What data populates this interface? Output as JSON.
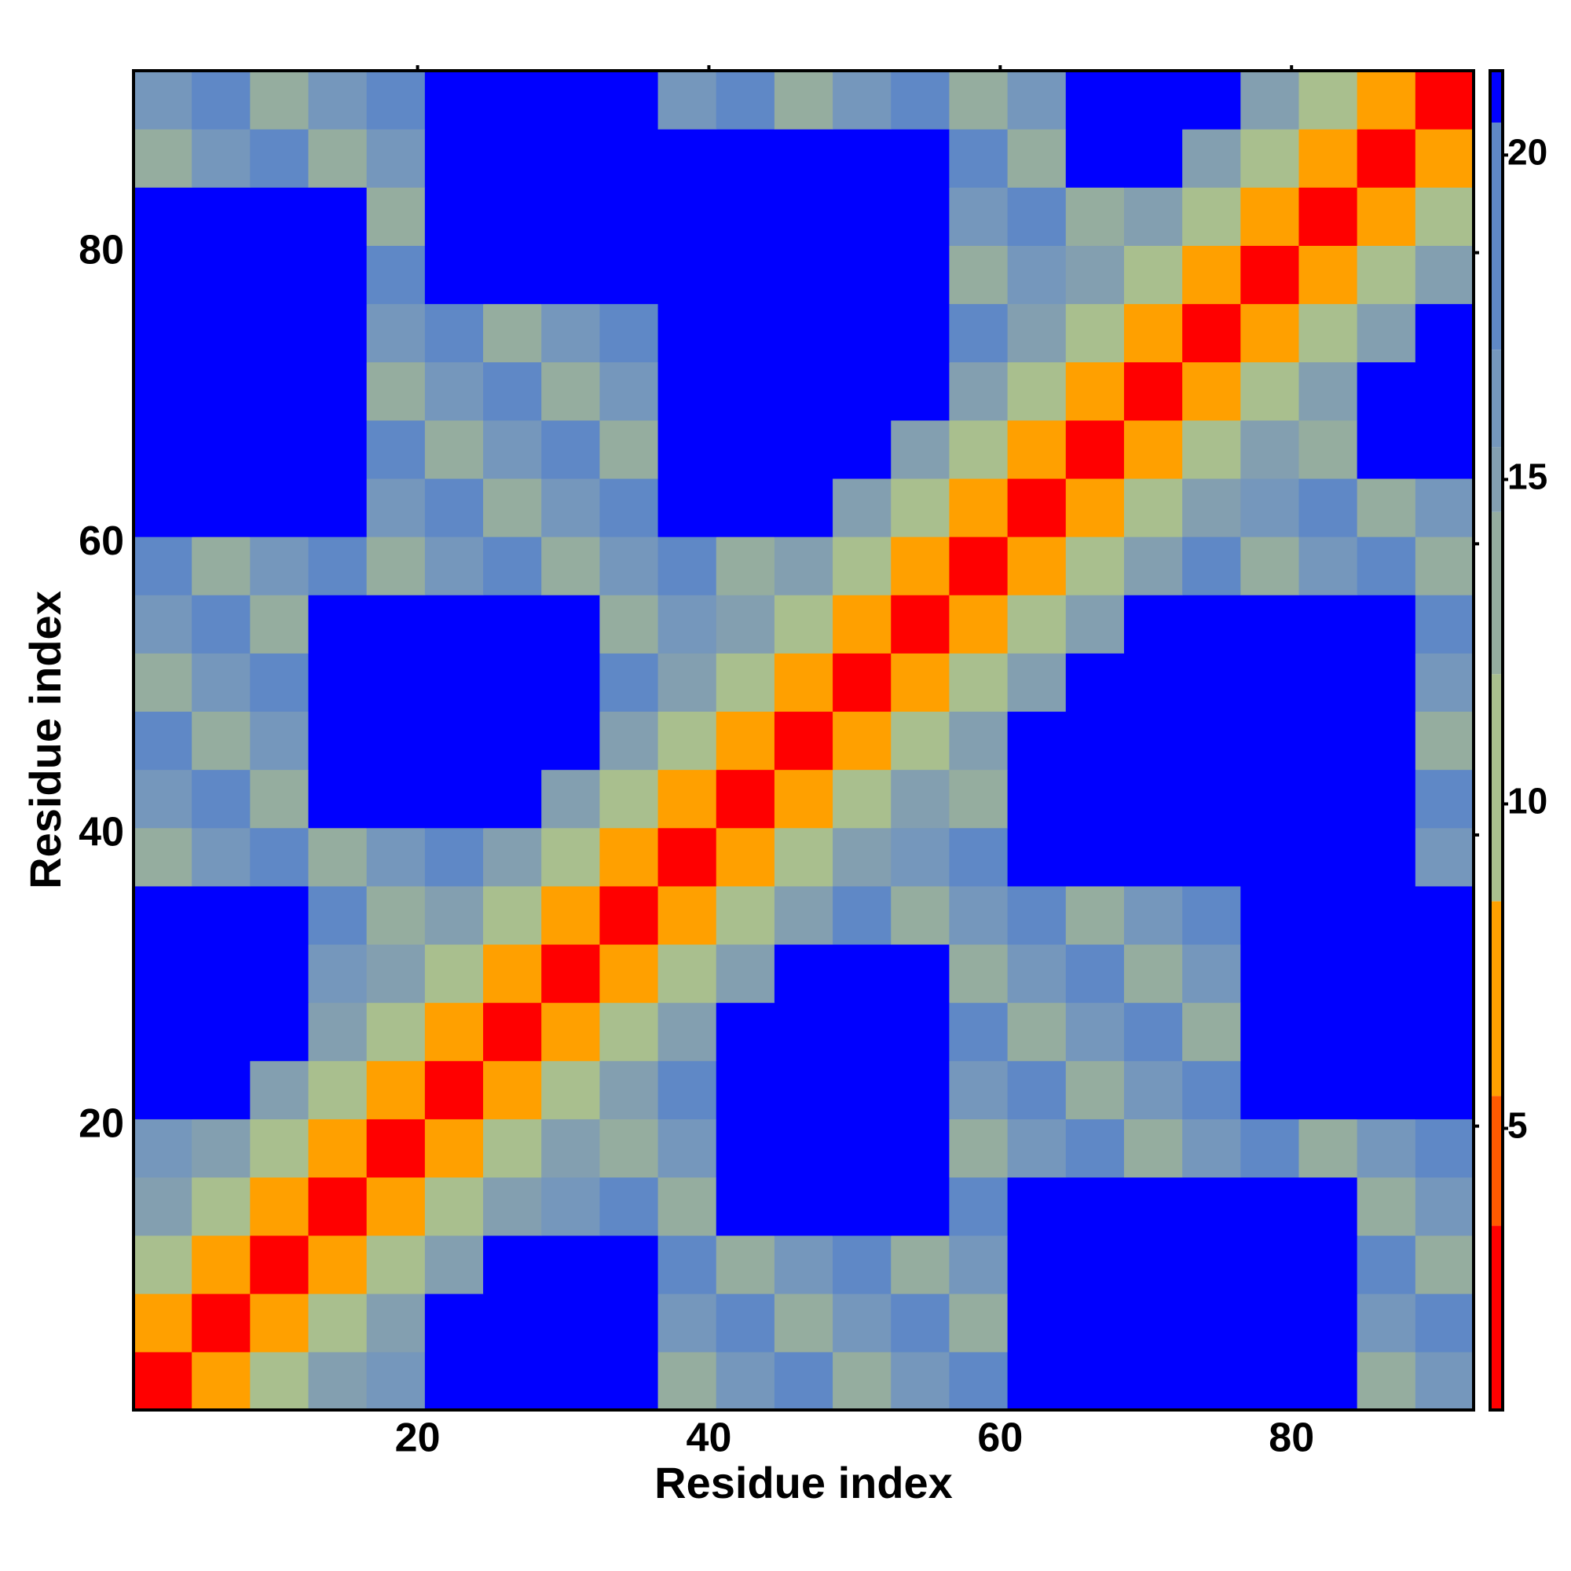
{
  "chart_data": {
    "type": "heatmap",
    "x_label": "Residue index",
    "y_label": "Residue index",
    "x": [
      2.5,
      6.5,
      10.5,
      14.5,
      18.5,
      22.5,
      26.5,
      30.5,
      34.5,
      38.5,
      42.5,
      46.5,
      50.5,
      54.5,
      58.5,
      62.5,
      66.5,
      70.5,
      74.5,
      78.5,
      82.5,
      86.5,
      90.5
    ],
    "y": [
      2.5,
      6.5,
      10.5,
      14.5,
      18.5,
      22.5,
      26.5,
      30.5,
      34.5,
      38.5,
      42.5,
      46.5,
      50.5,
      54.5,
      58.5,
      62.5,
      66.5,
      70.5,
      74.5,
      78.5,
      82.5,
      86.5,
      90.5
    ],
    "xlim": [
      0.5,
      92.5
    ],
    "ylim": [
      0.5,
      92.5
    ],
    "xticks": [
      20,
      40,
      60,
      80
    ],
    "yticks": [
      20,
      40,
      60,
      80
    ],
    "z": [
      [
        2,
        7,
        11,
        15,
        16,
        21,
        21,
        21,
        21,
        14,
        16,
        18,
        14,
        16,
        18,
        21,
        21,
        21,
        21,
        21,
        21,
        14,
        16
      ],
      [
        7,
        2,
        7,
        11,
        15,
        21,
        21,
        21,
        21,
        16,
        18,
        14,
        16,
        18,
        14,
        21,
        21,
        21,
        21,
        21,
        21,
        16,
        18
      ],
      [
        11,
        7,
        2,
        7,
        11,
        15,
        21,
        21,
        21,
        18,
        14,
        16,
        18,
        14,
        16,
        21,
        21,
        21,
        21,
        21,
        21,
        18,
        14
      ],
      [
        15,
        11,
        7,
        2,
        7,
        11,
        15,
        16,
        18,
        14,
        21,
        21,
        21,
        21,
        18,
        21,
        21,
        21,
        21,
        21,
        21,
        14,
        16
      ],
      [
        16,
        15,
        11,
        7,
        2,
        7,
        11,
        15,
        14,
        16,
        21,
        21,
        21,
        21,
        14,
        16,
        18,
        14,
        16,
        18,
        14,
        16,
        18
      ],
      [
        21,
        21,
        15,
        11,
        7,
        2,
        7,
        11,
        15,
        18,
        21,
        21,
        21,
        21,
        16,
        18,
        14,
        16,
        18,
        21,
        21,
        21,
        21
      ],
      [
        21,
        21,
        21,
        15,
        11,
        7,
        2,
        7,
        11,
        15,
        21,
        21,
        21,
        21,
        18,
        14,
        16,
        18,
        14,
        21,
        21,
        21,
        21
      ],
      [
        21,
        21,
        21,
        16,
        15,
        11,
        7,
        2,
        7,
        11,
        15,
        21,
        21,
        21,
        14,
        16,
        18,
        14,
        16,
        21,
        21,
        21,
        21
      ],
      [
        21,
        21,
        21,
        18,
        14,
        15,
        11,
        7,
        2,
        7,
        11,
        15,
        18,
        14,
        16,
        18,
        14,
        16,
        18,
        21,
        21,
        21,
        21
      ],
      [
        14,
        16,
        18,
        14,
        16,
        18,
        15,
        11,
        7,
        2,
        7,
        11,
        15,
        16,
        18,
        21,
        21,
        21,
        21,
        21,
        21,
        21,
        16
      ],
      [
        16,
        18,
        14,
        21,
        21,
        21,
        21,
        15,
        11,
        7,
        2,
        7,
        11,
        15,
        14,
        21,
        21,
        21,
        21,
        21,
        21,
        21,
        18
      ],
      [
        18,
        14,
        16,
        21,
        21,
        21,
        21,
        21,
        15,
        11,
        7,
        2,
        7,
        11,
        15,
        21,
        21,
        21,
        21,
        21,
        21,
        21,
        14
      ],
      [
        14,
        16,
        18,
        21,
        21,
        21,
        21,
        21,
        18,
        15,
        11,
        7,
        2,
        7,
        11,
        15,
        21,
        21,
        21,
        21,
        21,
        21,
        16
      ],
      [
        16,
        18,
        14,
        21,
        21,
        21,
        21,
        21,
        14,
        16,
        15,
        11,
        7,
        2,
        7,
        11,
        15,
        21,
        21,
        21,
        21,
        21,
        18
      ],
      [
        18,
        14,
        16,
        18,
        14,
        16,
        18,
        14,
        16,
        18,
        14,
        15,
        11,
        7,
        2,
        7,
        11,
        15,
        18,
        14,
        16,
        18,
        14
      ],
      [
        21,
        21,
        21,
        21,
        16,
        18,
        14,
        16,
        18,
        21,
        21,
        21,
        15,
        11,
        7,
        2,
        7,
        11,
        15,
        16,
        18,
        14,
        16
      ],
      [
        21,
        21,
        21,
        21,
        18,
        14,
        16,
        18,
        14,
        21,
        21,
        21,
        21,
        15,
        11,
        7,
        2,
        7,
        11,
        15,
        14,
        21,
        21
      ],
      [
        21,
        21,
        21,
        21,
        14,
        16,
        18,
        14,
        16,
        21,
        21,
        21,
        21,
        21,
        15,
        11,
        7,
        2,
        7,
        11,
        15,
        21,
        21
      ],
      [
        21,
        21,
        21,
        21,
        16,
        18,
        14,
        16,
        18,
        21,
        21,
        21,
        21,
        21,
        18,
        15,
        11,
        7,
        2,
        7,
        11,
        15,
        21
      ],
      [
        21,
        21,
        21,
        21,
        18,
        21,
        21,
        21,
        21,
        21,
        21,
        21,
        21,
        21,
        14,
        16,
        15,
        11,
        7,
        2,
        7,
        11,
        15
      ],
      [
        21,
        21,
        21,
        21,
        14,
        21,
        21,
        21,
        21,
        21,
        21,
        21,
        21,
        21,
        16,
        18,
        14,
        15,
        11,
        7,
        2,
        7,
        11
      ],
      [
        14,
        16,
        18,
        14,
        16,
        21,
        21,
        21,
        21,
        21,
        21,
        21,
        21,
        21,
        18,
        14,
        21,
        21,
        15,
        11,
        7,
        2,
        7
      ],
      [
        16,
        18,
        14,
        16,
        18,
        21,
        21,
        21,
        21,
        16,
        18,
        14,
        16,
        18,
        14,
        16,
        21,
        21,
        21,
        15,
        11,
        7,
        2
      ]
    ],
    "colorbar": {
      "lim": [
        0.66,
        21.3
      ],
      "ticks": [
        5,
        10,
        15,
        20
      ]
    },
    "colorscale": [
      {
        "max": 3.5,
        "color": "#ff0000"
      },
      {
        "max": 5.5,
        "color": "#ff5a00"
      },
      {
        "max": 8.5,
        "color": "#ffa000"
      },
      {
        "max": 12,
        "color": "#a9bf8e"
      },
      {
        "max": 14.5,
        "color": "#95ad9f"
      },
      {
        "max": 15.5,
        "color": "#839fb0"
      },
      {
        "max": 17,
        "color": "#7597bc"
      },
      {
        "max": 20.5,
        "color": "#5f88c6"
      },
      {
        "max": 21.3,
        "color": "#0000ff"
      }
    ]
  }
}
